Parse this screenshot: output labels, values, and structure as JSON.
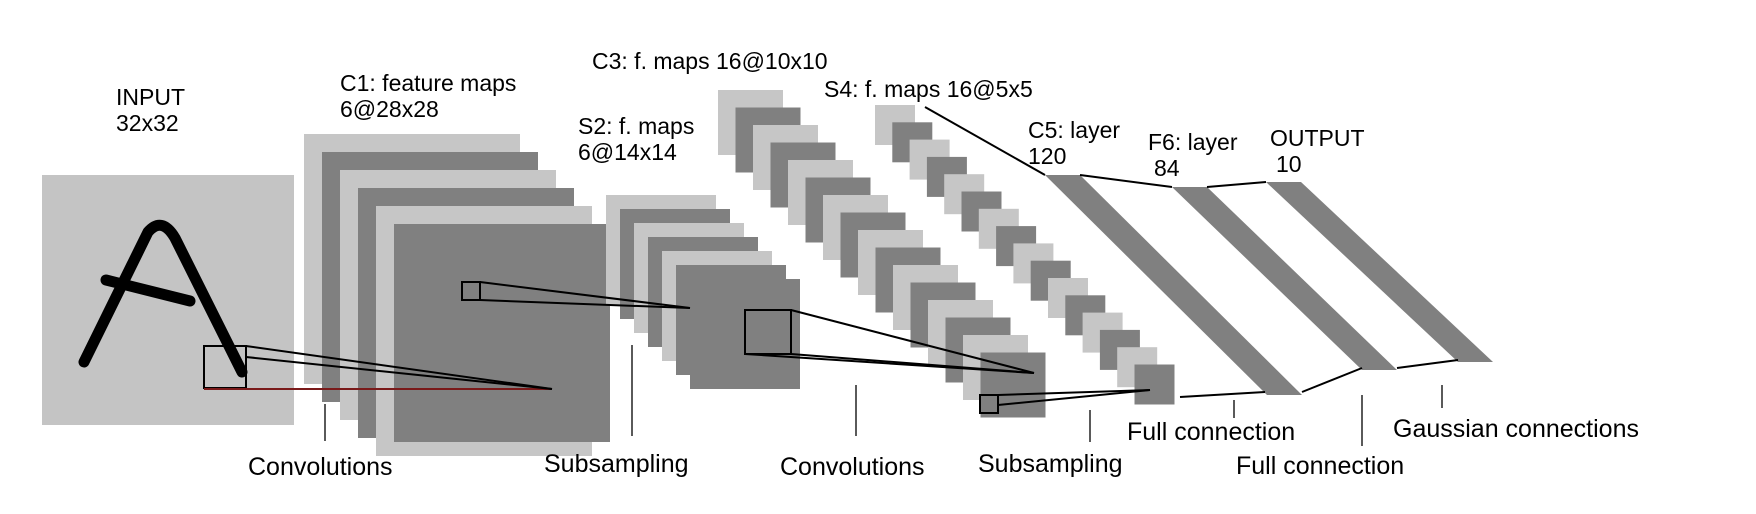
{
  "colors": {
    "light_map": "#c6c6c6",
    "dark_map": "#808080",
    "input_bg": "#c4c4c4",
    "ink": "#000000",
    "receptive_underline": "#7a1a1a"
  },
  "layers": {
    "input": {
      "line1": "INPUT",
      "line2": "32x32"
    },
    "c1": {
      "line1": "C1: feature maps",
      "line2": "6@28x28"
    },
    "s2": {
      "line1": "S2: f. maps",
      "line2": "6@14x14"
    },
    "c3": {
      "line1": "C3: f. maps 16@10x10"
    },
    "s4": {
      "line1": "S4: f. maps 16@5x5"
    },
    "c5": {
      "line1": "C5: layer",
      "line2": "120"
    },
    "f6": {
      "line1": "F6: layer",
      "line2": "84"
    },
    "output": {
      "line1": "OUTPUT",
      "line2": "10"
    }
  },
  "connections": [
    "Convolutions",
    "Subsampling",
    "Convolutions",
    "Subsampling",
    "Full connection",
    "Full connection",
    "Gaussian connections"
  ]
}
